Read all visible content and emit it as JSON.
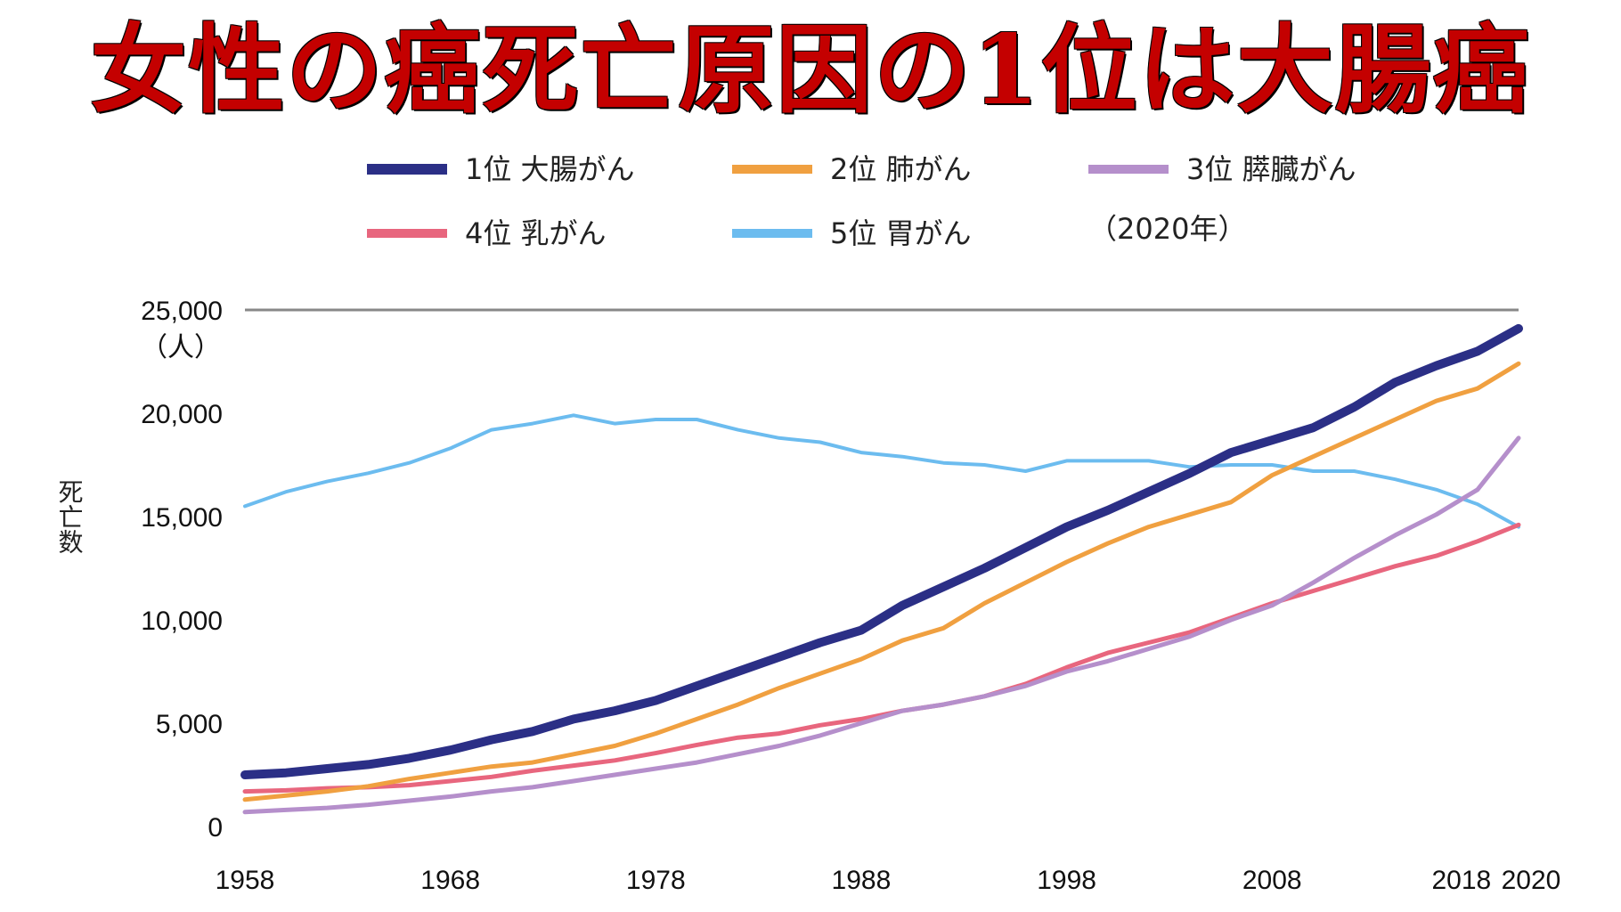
{
  "title": "女性の癌死亡原因の1位は大腸癌",
  "chart_data": {
    "type": "line",
    "title": "女性の癌死亡原因の1位は大腸癌",
    "ylabel": "死亡数",
    "yunit": "（人）",
    "legend_note": "（2020年）",
    "ylim": [
      0,
      25000
    ],
    "xlim": [
      1958,
      2020
    ],
    "yticks": [
      0,
      5000,
      10000,
      15000,
      20000,
      25000
    ],
    "ytick_labels": [
      "0",
      "5,000",
      "10,000",
      "15,000",
      "20,000",
      "25,000"
    ],
    "xticks": [
      1958,
      1968,
      1978,
      1988,
      1998,
      2008,
      2018,
      2020
    ],
    "xtick_labels": [
      "1958",
      "1968",
      "1978",
      "1988",
      "1998",
      "2008",
      "2018",
      "2020"
    ],
    "grid": "top-line-only",
    "legend_position": "top",
    "series": [
      {
        "name": "1位 大腸がん",
        "color": "#2b2f86",
        "points": [
          [
            1958,
            2500
          ],
          [
            1960,
            2600
          ],
          [
            1962,
            2800
          ],
          [
            1964,
            3000
          ],
          [
            1966,
            3300
          ],
          [
            1968,
            3700
          ],
          [
            1970,
            4200
          ],
          [
            1972,
            4600
          ],
          [
            1974,
            5200
          ],
          [
            1976,
            5600
          ],
          [
            1978,
            6100
          ],
          [
            1980,
            6800
          ],
          [
            1982,
            7500
          ],
          [
            1984,
            8200
          ],
          [
            1986,
            8900
          ],
          [
            1988,
            9500
          ],
          [
            1990,
            10700
          ],
          [
            1992,
            11600
          ],
          [
            1994,
            12500
          ],
          [
            1996,
            13500
          ],
          [
            1998,
            14500
          ],
          [
            2000,
            15300
          ],
          [
            2002,
            16200
          ],
          [
            2004,
            17100
          ],
          [
            2006,
            18100
          ],
          [
            2008,
            18700
          ],
          [
            2010,
            19300
          ],
          [
            2012,
            20300
          ],
          [
            2014,
            21500
          ],
          [
            2016,
            22300
          ],
          [
            2018,
            23000
          ],
          [
            2020,
            24100
          ]
        ]
      },
      {
        "name": "2位 肺がん",
        "color": "#f0a040",
        "points": [
          [
            1958,
            1300
          ],
          [
            1960,
            1500
          ],
          [
            1962,
            1700
          ],
          [
            1964,
            1950
          ],
          [
            1966,
            2300
          ],
          [
            1968,
            2600
          ],
          [
            1970,
            2900
          ],
          [
            1972,
            3100
          ],
          [
            1974,
            3500
          ],
          [
            1976,
            3900
          ],
          [
            1978,
            4500
          ],
          [
            1980,
            5200
          ],
          [
            1982,
            5900
          ],
          [
            1984,
            6700
          ],
          [
            1986,
            7400
          ],
          [
            1988,
            8100
          ],
          [
            1990,
            9000
          ],
          [
            1992,
            9600
          ],
          [
            1994,
            10800
          ],
          [
            1996,
            11800
          ],
          [
            1998,
            12800
          ],
          [
            2000,
            13700
          ],
          [
            2002,
            14500
          ],
          [
            2004,
            15100
          ],
          [
            2006,
            15700
          ],
          [
            2008,
            17000
          ],
          [
            2010,
            17900
          ],
          [
            2012,
            18800
          ],
          [
            2014,
            19700
          ],
          [
            2016,
            20600
          ],
          [
            2018,
            21200
          ],
          [
            2020,
            22400
          ]
        ]
      },
      {
        "name": "3位 膵臓がん",
        "color": "#b58fcb",
        "points": [
          [
            1958,
            700
          ],
          [
            1960,
            800
          ],
          [
            1962,
            900
          ],
          [
            1964,
            1050
          ],
          [
            1966,
            1250
          ],
          [
            1968,
            1450
          ],
          [
            1970,
            1700
          ],
          [
            1972,
            1900
          ],
          [
            1974,
            2200
          ],
          [
            1976,
            2500
          ],
          [
            1978,
            2800
          ],
          [
            1980,
            3100
          ],
          [
            1982,
            3500
          ],
          [
            1984,
            3900
          ],
          [
            1986,
            4400
          ],
          [
            1988,
            5000
          ],
          [
            1990,
            5600
          ],
          [
            1992,
            5900
          ],
          [
            1994,
            6300
          ],
          [
            1996,
            6800
          ],
          [
            1998,
            7500
          ],
          [
            2000,
            8000
          ],
          [
            2002,
            8600
          ],
          [
            2004,
            9200
          ],
          [
            2006,
            10000
          ],
          [
            2008,
            10700
          ],
          [
            2010,
            11800
          ],
          [
            2012,
            13000
          ],
          [
            2014,
            14100
          ],
          [
            2016,
            15100
          ],
          [
            2018,
            16300
          ],
          [
            2020,
            18800
          ]
        ]
      },
      {
        "name": "4位 乳がん",
        "color": "#e8667e",
        "points": [
          [
            1958,
            1700
          ],
          [
            1960,
            1750
          ],
          [
            1962,
            1850
          ],
          [
            1964,
            1900
          ],
          [
            1966,
            2000
          ],
          [
            1968,
            2200
          ],
          [
            1970,
            2400
          ],
          [
            1972,
            2700
          ],
          [
            1974,
            2950
          ],
          [
            1976,
            3200
          ],
          [
            1978,
            3550
          ],
          [
            1980,
            3950
          ],
          [
            1982,
            4300
          ],
          [
            1984,
            4500
          ],
          [
            1986,
            4900
          ],
          [
            1988,
            5200
          ],
          [
            1990,
            5600
          ],
          [
            1992,
            5900
          ],
          [
            1994,
            6300
          ],
          [
            1996,
            6900
          ],
          [
            1998,
            7700
          ],
          [
            2000,
            8400
          ],
          [
            2002,
            8900
          ],
          [
            2004,
            9400
          ],
          [
            2006,
            10100
          ],
          [
            2008,
            10800
          ],
          [
            2010,
            11400
          ],
          [
            2012,
            12000
          ],
          [
            2014,
            12600
          ],
          [
            2016,
            13100
          ],
          [
            2018,
            13800
          ],
          [
            2020,
            14600
          ]
        ]
      },
      {
        "name": "5位 胃がん",
        "color": "#6cbcef",
        "points": [
          [
            1958,
            15500
          ],
          [
            1960,
            16200
          ],
          [
            1962,
            16700
          ],
          [
            1964,
            17100
          ],
          [
            1966,
            17600
          ],
          [
            1968,
            18300
          ],
          [
            1970,
            19200
          ],
          [
            1972,
            19500
          ],
          [
            1974,
            19900
          ],
          [
            1976,
            19500
          ],
          [
            1978,
            19700
          ],
          [
            1980,
            19700
          ],
          [
            1982,
            19200
          ],
          [
            1984,
            18800
          ],
          [
            1986,
            18600
          ],
          [
            1988,
            18100
          ],
          [
            1990,
            17900
          ],
          [
            1992,
            17600
          ],
          [
            1994,
            17500
          ],
          [
            1996,
            17200
          ],
          [
            1998,
            17700
          ],
          [
            2000,
            17700
          ],
          [
            2002,
            17700
          ],
          [
            2004,
            17400
          ],
          [
            2006,
            17500
          ],
          [
            2008,
            17500
          ],
          [
            2010,
            17200
          ],
          [
            2012,
            17200
          ],
          [
            2014,
            16800
          ],
          [
            2016,
            16300
          ],
          [
            2018,
            15600
          ],
          [
            2020,
            14500
          ]
        ]
      }
    ]
  }
}
